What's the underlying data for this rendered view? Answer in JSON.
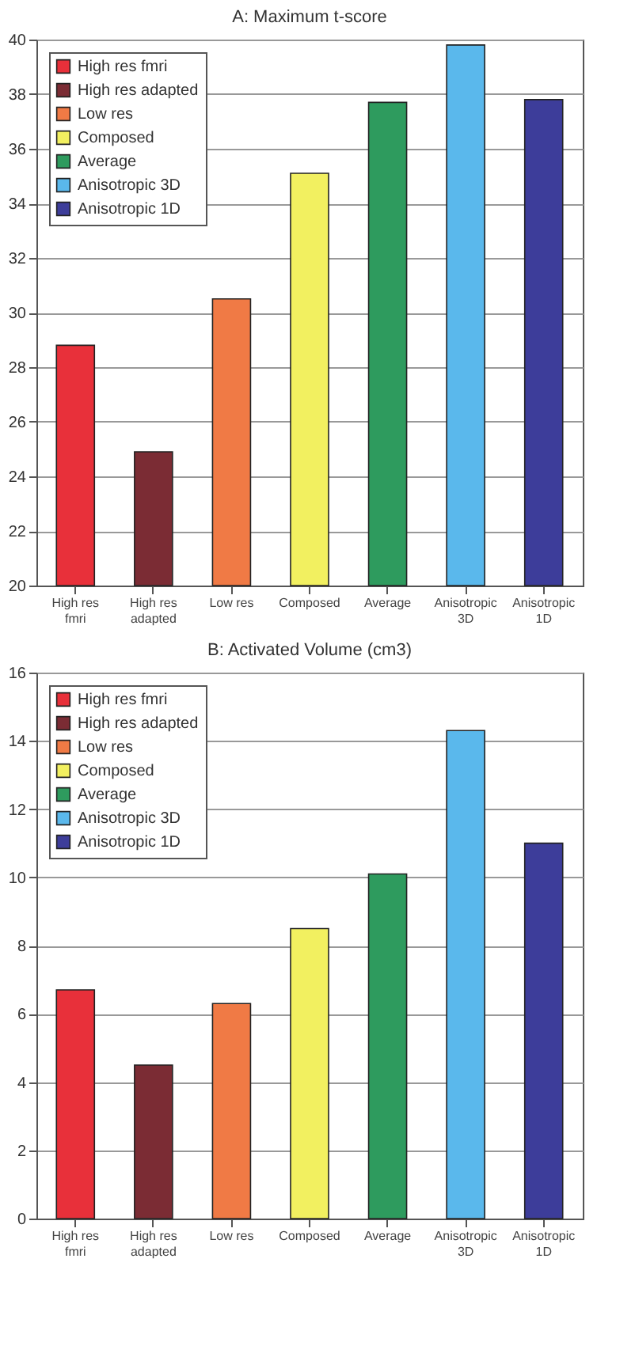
{
  "chart_data": [
    {
      "type": "bar",
      "title": "A: Maximum t-score",
      "categories": [
        "High res fmri",
        "High res adapted",
        "Low res",
        "Composed",
        "Average",
        "Anisotropic 3D",
        "Anisotropic 1D"
      ],
      "series": [
        {
          "name": "High res fmri",
          "color": "#e8303a",
          "values": [
            28.8,
            null,
            null,
            null,
            null,
            null,
            null
          ]
        },
        {
          "name": "High res adapted",
          "color": "#7b2c34",
          "values": [
            null,
            24.9,
            null,
            null,
            null,
            null,
            null
          ]
        },
        {
          "name": "Low res",
          "color": "#f07a45",
          "values": [
            null,
            null,
            30.5,
            null,
            null,
            null,
            null
          ]
        },
        {
          "name": "Composed",
          "color": "#f2f060",
          "values": [
            null,
            null,
            null,
            35.1,
            null,
            null,
            null
          ]
        },
        {
          "name": "Average",
          "color": "#2e9b5e",
          "values": [
            null,
            null,
            null,
            null,
            37.7,
            null,
            null
          ]
        },
        {
          "name": "Anisotropic 3D",
          "color": "#5ab8ec",
          "values": [
            null,
            null,
            null,
            null,
            null,
            39.8,
            null
          ]
        },
        {
          "name": "Anisotropic 1D",
          "color": "#3d3d9a",
          "values": [
            null,
            null,
            null,
            null,
            null,
            null,
            37.8
          ]
        }
      ],
      "ylim": [
        20,
        40
      ],
      "yticks": [
        20,
        22,
        24,
        26,
        28,
        30,
        32,
        34,
        36,
        38,
        40
      ],
      "grid": "y",
      "legend": "top left"
    },
    {
      "type": "bar",
      "title": "B: Activated Volume (cm3)",
      "categories": [
        "High res fmri",
        "High res adapted",
        "Low res",
        "Composed",
        "Average",
        "Anisotropic 3D",
        "Anisotropic 1D"
      ],
      "series": [
        {
          "name": "High res fmri",
          "color": "#e8303a",
          "values": [
            6.7,
            null,
            null,
            null,
            null,
            null,
            null
          ]
        },
        {
          "name": "High res adapted",
          "color": "#7b2c34",
          "values": [
            null,
            4.5,
            null,
            null,
            null,
            null,
            null
          ]
        },
        {
          "name": "Low res",
          "color": "#f07a45",
          "values": [
            null,
            null,
            6.3,
            null,
            null,
            null,
            null
          ]
        },
        {
          "name": "Composed",
          "color": "#f2f060",
          "values": [
            null,
            null,
            null,
            8.5,
            null,
            null,
            null
          ]
        },
        {
          "name": "Average",
          "color": "#2e9b5e",
          "values": [
            null,
            null,
            null,
            null,
            10.1,
            null,
            null
          ]
        },
        {
          "name": "Anisotropic 3D",
          "color": "#5ab8ec",
          "values": [
            null,
            null,
            null,
            null,
            null,
            14.3,
            null
          ]
        },
        {
          "name": "Anisotropic 1D",
          "color": "#3d3d9a",
          "values": [
            null,
            null,
            null,
            null,
            null,
            null,
            11.0
          ]
        }
      ],
      "ylim": [
        0,
        16
      ],
      "yticks": [
        0,
        2,
        4,
        6,
        8,
        10,
        12,
        14,
        16
      ],
      "grid": "y",
      "legend": "top left"
    }
  ]
}
